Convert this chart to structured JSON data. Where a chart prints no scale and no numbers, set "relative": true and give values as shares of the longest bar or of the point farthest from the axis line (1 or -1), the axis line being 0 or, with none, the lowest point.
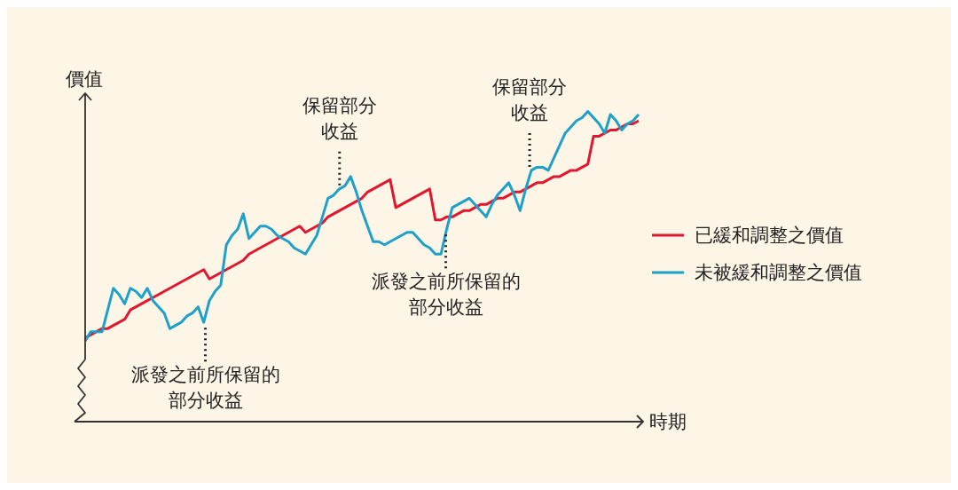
{
  "chart_data": {
    "type": "line",
    "relative": true,
    "xlabel": "時期",
    "ylabel": "價值",
    "categories": [
      null,
      null,
      null,
      null,
      null,
      null,
      null,
      null,
      null,
      null,
      null,
      null,
      null,
      null,
      null,
      null,
      null,
      null,
      null,
      null,
      null,
      null,
      null,
      null,
      null,
      null,
      null,
      null,
      null,
      null,
      null,
      null,
      null,
      null,
      null,
      null,
      null,
      null,
      null,
      null,
      null,
      null,
      null,
      null,
      null,
      null,
      null,
      null,
      null,
      null,
      null,
      null,
      null,
      null,
      null,
      null,
      null,
      null,
      null,
      null,
      null,
      null,
      null,
      null,
      null,
      null,
      null,
      null,
      null,
      null,
      null,
      null,
      null,
      null,
      null,
      null,
      null,
      null,
      null,
      null,
      null,
      null,
      null,
      null,
      null,
      null,
      null,
      null,
      null,
      null,
      null,
      null,
      null,
      null,
      null,
      null,
      null,
      null,
      null
    ],
    "tick_labels": false,
    "legend": "right",
    "marker": "none",
    "line_style": "solid",
    "series": [
      {
        "name": "已緩和調整之價值",
        "color": "#e0182d",
        "values": [
          0.27,
          0.28,
          0.29,
          0.3,
          0.3,
          0.31,
          0.32,
          0.33,
          0.36,
          0.37,
          0.38,
          0.39,
          0.4,
          0.41,
          0.42,
          0.43,
          0.44,
          0.45,
          0.46,
          0.47,
          0.48,
          0.49,
          0.46,
          0.47,
          0.48,
          0.49,
          0.5,
          0.51,
          0.52,
          0.54,
          0.55,
          0.56,
          0.57,
          0.58,
          0.59,
          0.6,
          0.61,
          0.62,
          0.63,
          0.61,
          0.62,
          0.63,
          0.64,
          0.66,
          0.67,
          0.68,
          0.69,
          0.7,
          0.71,
          0.72,
          0.74,
          0.75,
          0.76,
          0.77,
          0.78,
          0.69,
          0.7,
          0.71,
          0.72,
          0.73,
          0.74,
          0.75,
          0.65,
          0.65,
          0.66,
          0.66,
          0.67,
          0.68,
          0.68,
          0.69,
          0.7,
          0.7,
          0.71,
          0.72,
          0.72,
          0.73,
          0.74,
          0.74,
          0.75,
          0.76,
          0.77,
          0.77,
          0.78,
          0.79,
          0.79,
          0.8,
          0.81,
          0.81,
          0.82,
          0.83,
          0.92,
          0.92,
          0.93,
          0.94,
          0.94,
          0.95,
          0.96,
          0.96,
          0.97
        ]
      },
      {
        "name": "未被緩和調整之價值",
        "color": "#1ea0c8",
        "values": [
          0.26,
          0.29,
          0.29,
          0.29,
          0.36,
          0.43,
          0.41,
          0.38,
          0.43,
          0.42,
          0.4,
          0.43,
          0.39,
          0.37,
          0.35,
          0.3,
          0.31,
          0.32,
          0.34,
          0.35,
          0.37,
          0.32,
          0.39,
          0.42,
          0.44,
          0.57,
          0.6,
          0.62,
          0.67,
          0.59,
          0.61,
          0.63,
          0.63,
          0.62,
          0.6,
          0.59,
          0.58,
          0.56,
          0.55,
          0.54,
          0.57,
          0.6,
          0.66,
          0.72,
          0.73,
          0.75,
          0.76,
          0.79,
          0.74,
          0.68,
          0.63,
          0.58,
          0.58,
          0.57,
          0.58,
          0.59,
          0.6,
          0.61,
          0.61,
          0.59,
          0.57,
          0.56,
          0.54,
          0.54,
          0.62,
          0.69,
          0.7,
          0.71,
          0.72,
          0.7,
          0.68,
          0.66,
          0.7,
          0.73,
          0.75,
          0.77,
          0.73,
          0.68,
          0.75,
          0.81,
          0.82,
          0.82,
          0.81,
          0.85,
          0.89,
          0.93,
          0.95,
          0.97,
          0.98,
          1,
          0.98,
          0.96,
          0.93,
          0.99,
          0.97,
          0.94,
          0.96,
          0.97,
          0.99
        ]
      }
    ],
    "annotations": [
      "派發之前所保留的部分收益",
      "保留部分收益",
      "派發之前所保留的部分收益",
      "保留部分收益"
    ]
  }
}
